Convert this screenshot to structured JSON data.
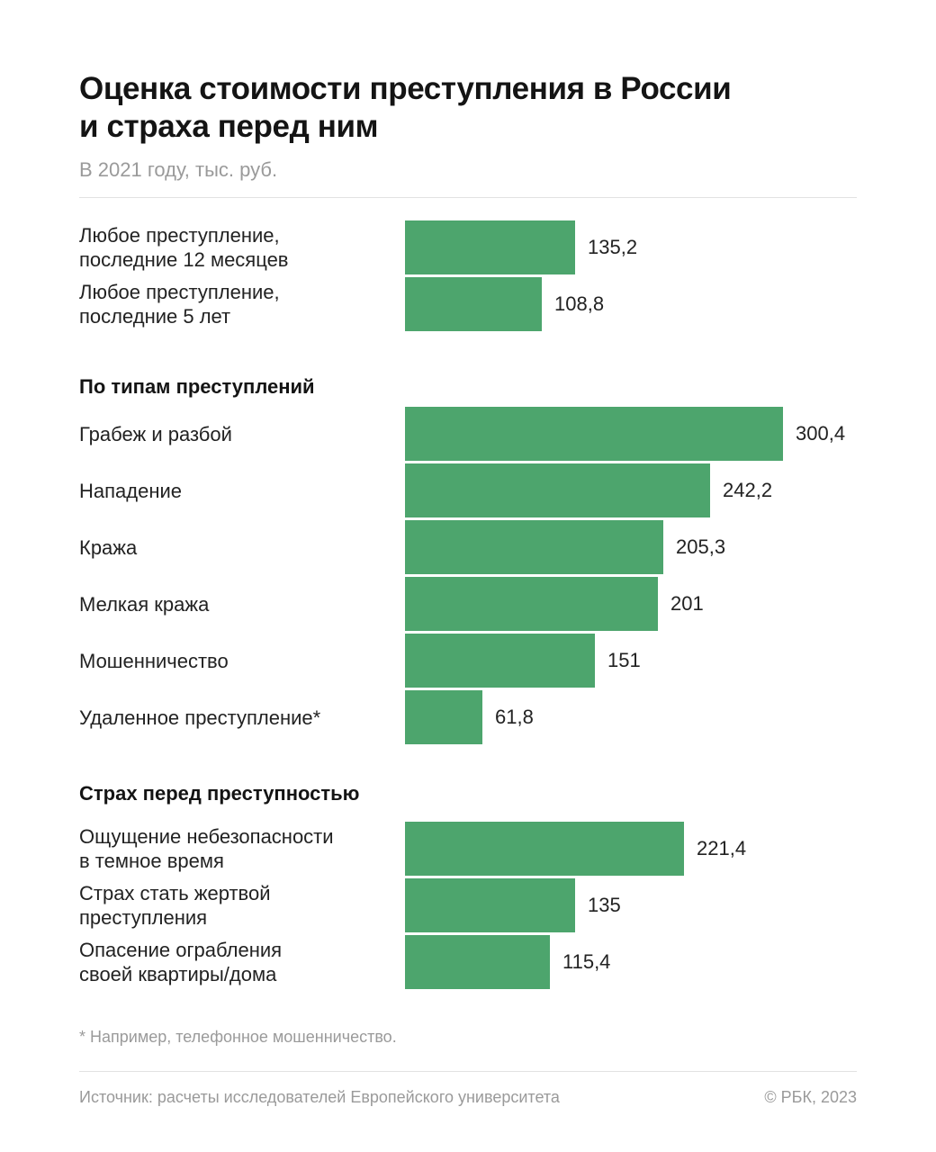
{
  "chart_data": {
    "type": "bar",
    "orientation": "horizontal",
    "title": "Оценка стоимости преступления в России и страха перед ним",
    "title_lines": [
      "Оценка стоимости преступления в России",
      "и страха перед ним"
    ],
    "subtitle": "В 2021 году, тыс. руб.",
    "groups": [
      {
        "heading": "",
        "items": [
          {
            "label_lines": [
              "Любое преступление,",
              "последние 12 месяцев"
            ],
            "value": 135.2,
            "value_label": "135,2"
          },
          {
            "label_lines": [
              "Любое преступление,",
              "последние 5 лет"
            ],
            "value": 108.8,
            "value_label": "108,8"
          }
        ]
      },
      {
        "heading": "По типам преступлений",
        "items": [
          {
            "label_lines": [
              "Грабеж и разбой"
            ],
            "value": 300.4,
            "value_label": "300,4"
          },
          {
            "label_lines": [
              "Нападение"
            ],
            "value": 242.2,
            "value_label": "242,2"
          },
          {
            "label_lines": [
              "Кража"
            ],
            "value": 205.3,
            "value_label": "205,3"
          },
          {
            "label_lines": [
              "Мелкая кража"
            ],
            "value": 201,
            "value_label": "201"
          },
          {
            "label_lines": [
              "Мошенничество"
            ],
            "value": 151,
            "value_label": "151"
          },
          {
            "label_lines": [
              "Удаленное преступление*"
            ],
            "value": 61.8,
            "value_label": "61,8"
          }
        ]
      },
      {
        "heading": "Страх перед преступностью",
        "items": [
          {
            "label_lines": [
              "Ощущение небезопасности",
              "в темное время"
            ],
            "value": 221.4,
            "value_label": "221,4"
          },
          {
            "label_lines": [
              "Страх стать жертвой",
              "преступления"
            ],
            "value": 135,
            "value_label": "135"
          },
          {
            "label_lines": [
              "Опасение ограбления",
              "своей квартиры/дома"
            ],
            "value": 115.4,
            "value_label": "115,4"
          }
        ]
      }
    ],
    "xlim": [
      0,
      300.4
    ],
    "grid": false,
    "legend": "none",
    "bar_color": "#4da56d"
  },
  "footnote": "* Например, телефонное мошенничество.",
  "source": "Источник: расчеты исследователей Европейского университета",
  "copyright": "© РБК, 2023"
}
